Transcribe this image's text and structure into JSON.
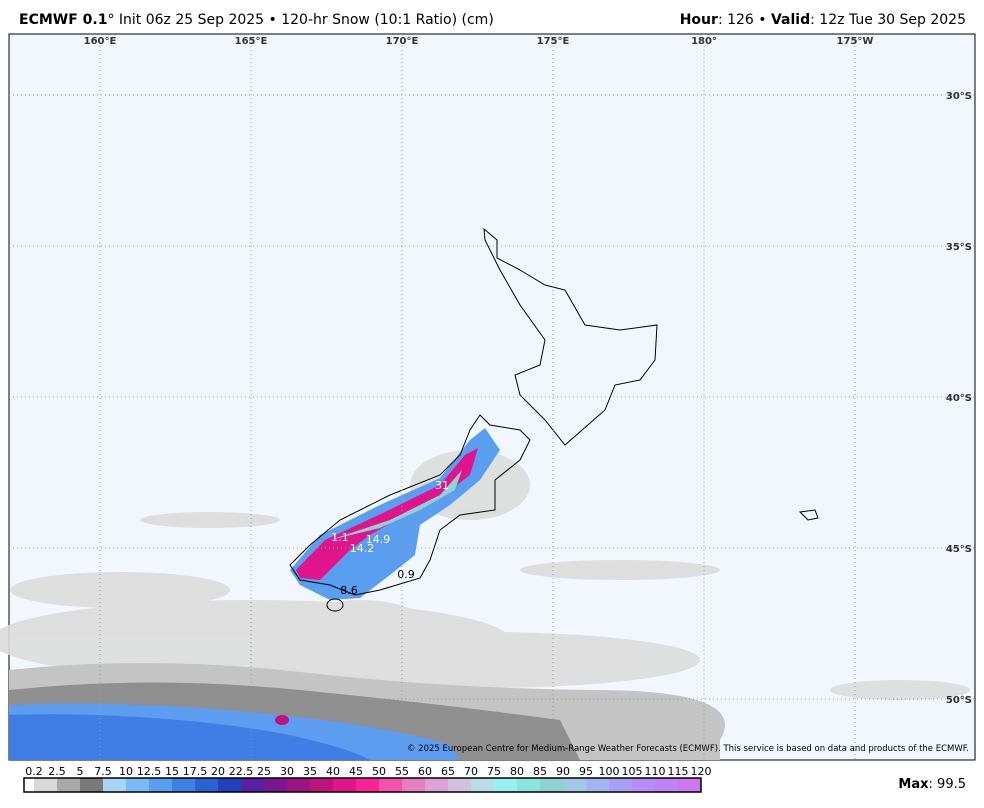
{
  "header": {
    "left_bold": "ECMWF 0.1",
    "left_rest": "° Init 06z 25 Sep 2025 • 120-hr Snow (10:1 Ratio) (cm)",
    "hour_label": "Hour",
    "hour_text": ": 126 • ",
    "valid_label": "Valid",
    "valid_text": ": 12z Tue 30 Sep 2025"
  },
  "map": {
    "lon_labels": [
      "160°E",
      "165°E",
      "170°E",
      "175°E",
      "180°",
      "175°W"
    ],
    "lat_labels": [
      "30°S",
      "35°S",
      "40°S",
      "45°S",
      "50°S"
    ],
    "value_labels": [
      "31",
      "1.1",
      "14.9",
      "14.2",
      "0.9",
      "8.6"
    ],
    "copyright": "© 2025 European Centre for Medium-Range Weather Forecasts (ECMWF). This service is based on data and products of the ECMWF."
  },
  "colorbar": {
    "labels": [
      "0.2",
      "2.5",
      "5",
      "7.5",
      "10",
      "12.5",
      "15",
      "17.5",
      "20",
      "22.5",
      "25",
      "30",
      "35",
      "40",
      "45",
      "50",
      "55",
      "60",
      "65",
      "70",
      "75",
      "80",
      "85",
      "90",
      "95",
      "100",
      "105",
      "110",
      "115",
      "120"
    ],
    "colors": [
      "#ffffff",
      "#d9d9d9",
      "#a9a9a9",
      "#7a7a7a",
      "#a8d4f7",
      "#7cbaf6",
      "#5a9ef0",
      "#3f80e6",
      "#2c61d6",
      "#2040bd",
      "#5b1fa6",
      "#7b168f",
      "#9d1482",
      "#c0127c",
      "#e2148c",
      "#ff1f96",
      "#f252ab",
      "#e67fc2",
      "#dca2d3",
      "#d3c2de",
      "#b6dde8",
      "#98f0f0",
      "#8de4df",
      "#8ed2d2",
      "#a2c8e8",
      "#a3b5f1",
      "#ab9ff5",
      "#b68df6",
      "#c182f4",
      "#cd78f1"
    ]
  },
  "footer": {
    "max_label": "Max",
    "max_text": ": 99.5"
  }
}
